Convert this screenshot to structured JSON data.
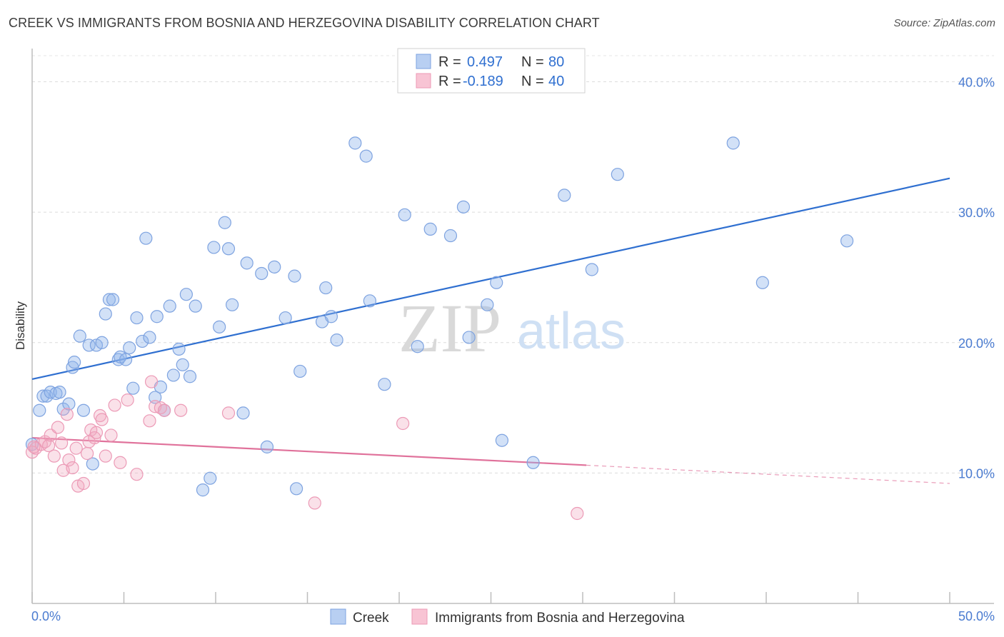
{
  "header": {
    "title": "CREEK VS IMMIGRANTS FROM BOSNIA AND HERZEGOVINA DISABILITY CORRELATION CHART",
    "source": "Source: ZipAtlas.com"
  },
  "watermark": {
    "zip": "ZIP",
    "atlas": "atlas"
  },
  "legend": {
    "rows": [
      {
        "r_label": "R =",
        "r_value": "0.497",
        "n_label": "N =",
        "n_value": "80"
      },
      {
        "r_label": "R =",
        "r_value": "-0.189",
        "n_label": "N =",
        "n_value": "40"
      }
    ]
  },
  "chart_data": {
    "type": "scatter",
    "title": "CREEK VS IMMIGRANTS FROM BOSNIA AND HERZEGOVINA DISABILITY CORRELATION CHART",
    "xlabel": "",
    "ylabel": "Disability",
    "xlim": [
      0,
      50
    ],
    "ylim": [
      0,
      42
    ],
    "x_tick_labels": [
      "0.0%",
      "50.0%"
    ],
    "y_ticks": [
      10,
      20,
      30,
      40
    ],
    "y_tick_labels": [
      "10.0%",
      "20.0%",
      "30.0%",
      "40.0%"
    ],
    "grid": true,
    "legend_position": "top-center",
    "series": [
      {
        "name": "Creek",
        "color": "#8fb4ea",
        "line_color": "#2f6fd0",
        "r": 0.497,
        "n": 80,
        "trend": {
          "x": [
            0,
            50
          ],
          "y": [
            17.2,
            32.6
          ]
        },
        "points": [
          [
            0.0,
            12.2
          ],
          [
            0.4,
            14.8
          ],
          [
            0.6,
            15.9
          ],
          [
            0.8,
            15.9
          ],
          [
            1.0,
            16.2
          ],
          [
            1.3,
            16.1
          ],
          [
            1.5,
            16.2
          ],
          [
            1.7,
            14.9
          ],
          [
            2.0,
            15.3
          ],
          [
            2.2,
            18.1
          ],
          [
            2.3,
            18.5
          ],
          [
            2.6,
            20.5
          ],
          [
            2.8,
            14.8
          ],
          [
            3.1,
            19.8
          ],
          [
            3.3,
            10.7
          ],
          [
            3.5,
            19.8
          ],
          [
            3.8,
            20.0
          ],
          [
            4.0,
            22.2
          ],
          [
            4.2,
            23.3
          ],
          [
            4.4,
            23.3
          ],
          [
            4.7,
            18.7
          ],
          [
            4.8,
            18.9
          ],
          [
            5.1,
            18.7
          ],
          [
            5.3,
            19.6
          ],
          [
            5.5,
            16.5
          ],
          [
            5.7,
            21.9
          ],
          [
            6.0,
            20.1
          ],
          [
            6.2,
            28.0
          ],
          [
            6.4,
            20.4
          ],
          [
            6.7,
            15.8
          ],
          [
            6.8,
            22.0
          ],
          [
            7.0,
            16.6
          ],
          [
            7.2,
            14.8
          ],
          [
            7.5,
            22.8
          ],
          [
            7.7,
            17.5
          ],
          [
            8.0,
            19.5
          ],
          [
            8.2,
            18.3
          ],
          [
            8.4,
            23.7
          ],
          [
            8.6,
            17.4
          ],
          [
            8.9,
            22.8
          ],
          [
            9.3,
            8.7
          ],
          [
            9.7,
            9.6
          ],
          [
            9.9,
            27.3
          ],
          [
            10.2,
            21.2
          ],
          [
            10.5,
            29.2
          ],
          [
            10.7,
            27.2
          ],
          [
            10.9,
            22.9
          ],
          [
            11.5,
            14.6
          ],
          [
            11.7,
            26.1
          ],
          [
            12.5,
            25.3
          ],
          [
            12.8,
            12.0
          ],
          [
            13.2,
            25.8
          ],
          [
            13.8,
            21.9
          ],
          [
            14.3,
            25.1
          ],
          [
            14.4,
            8.8
          ],
          [
            14.6,
            17.8
          ],
          [
            15.8,
            21.6
          ],
          [
            16.0,
            24.2
          ],
          [
            16.3,
            22.0
          ],
          [
            16.6,
            20.2
          ],
          [
            17.6,
            35.3
          ],
          [
            18.2,
            34.3
          ],
          [
            18.4,
            23.2
          ],
          [
            19.2,
            16.8
          ],
          [
            20.3,
            29.8
          ],
          [
            21.0,
            19.7
          ],
          [
            21.7,
            28.7
          ],
          [
            22.8,
            28.2
          ],
          [
            23.5,
            30.4
          ],
          [
            23.8,
            20.4
          ],
          [
            24.8,
            22.9
          ],
          [
            25.3,
            24.6
          ],
          [
            25.6,
            12.5
          ],
          [
            27.3,
            10.8
          ],
          [
            29.0,
            31.3
          ],
          [
            30.5,
            25.6
          ],
          [
            31.9,
            32.9
          ],
          [
            38.2,
            35.3
          ],
          [
            39.8,
            24.6
          ],
          [
            44.4,
            27.8
          ]
        ]
      },
      {
        "name": "Immigrants from Bosnia and Herzegovina",
        "color": "#f0a9c0",
        "line_color": "#e0729b",
        "r": -0.189,
        "n": 40,
        "trend": {
          "x": [
            0,
            30.2
          ],
          "y": [
            12.7,
            10.6
          ]
        },
        "trend_dashed": {
          "x": [
            30.2,
            50
          ],
          "y": [
            10.6,
            9.2
          ]
        },
        "points": [
          [
            0.0,
            11.6
          ],
          [
            0.2,
            11.9
          ],
          [
            0.5,
            12.2
          ],
          [
            0.7,
            12.4
          ],
          [
            0.9,
            12.1
          ],
          [
            1.0,
            12.9
          ],
          [
            1.2,
            11.3
          ],
          [
            1.4,
            13.5
          ],
          [
            1.6,
            12.3
          ],
          [
            1.7,
            10.2
          ],
          [
            1.9,
            14.5
          ],
          [
            2.0,
            11.0
          ],
          [
            2.2,
            10.4
          ],
          [
            2.4,
            11.9
          ],
          [
            2.5,
            9.0
          ],
          [
            2.8,
            9.2
          ],
          [
            3.0,
            11.5
          ],
          [
            3.1,
            12.4
          ],
          [
            3.2,
            13.3
          ],
          [
            3.4,
            12.7
          ],
          [
            3.5,
            13.1
          ],
          [
            3.7,
            14.4
          ],
          [
            3.8,
            14.1
          ],
          [
            4.0,
            11.3
          ],
          [
            4.3,
            12.9
          ],
          [
            4.5,
            15.2
          ],
          [
            4.8,
            10.8
          ],
          [
            5.2,
            15.6
          ],
          [
            5.7,
            9.9
          ],
          [
            6.4,
            14.0
          ],
          [
            6.5,
            17.0
          ],
          [
            6.7,
            15.1
          ],
          [
            7.0,
            15.0
          ],
          [
            7.2,
            14.8
          ],
          [
            8.1,
            14.8
          ],
          [
            10.7,
            14.6
          ],
          [
            15.4,
            7.7
          ],
          [
            20.2,
            13.8
          ],
          [
            29.7,
            6.9
          ],
          [
            0.1,
            12.0
          ]
        ]
      }
    ]
  }
}
